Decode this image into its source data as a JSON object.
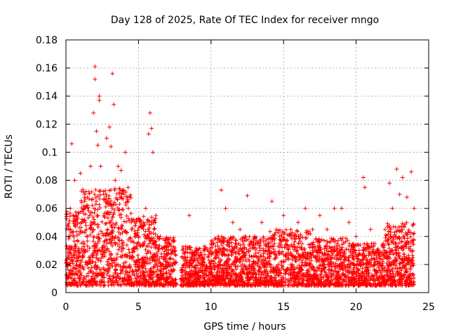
{
  "chart_data": {
    "type": "scatter",
    "title": "Day 128 of 2025, Rate Of TEC Index for receiver mngo",
    "xlabel": "GPS time / hours",
    "ylabel": "ROTI / TECUs",
    "xlim": [
      0,
      25
    ],
    "ylim": [
      0,
      0.18
    ],
    "x_ticks": [
      0,
      5,
      10,
      15,
      20,
      25
    ],
    "x_tick_labels": [
      "0",
      "5",
      "10",
      "15",
      "20",
      "25"
    ],
    "y_ticks": [
      0,
      0.02,
      0.04,
      0.06,
      0.08,
      0.1,
      0.12,
      0.14,
      0.16,
      0.18
    ],
    "y_tick_labels": [
      "0",
      "0.02",
      "0.04",
      "0.06",
      "0.08",
      "0.1",
      "0.12",
      "0.14",
      "0.16",
      "0.18"
    ],
    "grid": true,
    "marker": "+",
    "color": "#ff0000",
    "series": [
      {
        "name": "ROTI",
        "x": [
          0.2,
          0.3,
          0.4,
          0.5,
          0.6,
          0.8,
          1.0,
          1.1,
          1.3,
          1.5,
          1.7,
          1.9,
          2.0,
          2.0,
          2.1,
          2.2,
          2.3,
          2.3,
          2.4,
          2.6,
          2.8,
          3.0,
          3.1,
          3.2,
          3.3,
          3.4,
          3.6,
          3.8,
          4.0,
          4.1,
          4.3,
          4.5,
          4.8,
          5.2,
          5.5,
          5.7,
          5.8,
          5.9,
          6.0,
          6.2,
          6.5,
          7.0,
          7.5,
          8.0,
          8.5,
          9.0,
          9.5,
          10.0,
          10.5,
          10.7,
          11.0,
          11.5,
          12.0,
          12.5,
          13.0,
          13.5,
          14.0,
          14.2,
          14.5,
          15.0,
          15.5,
          16.0,
          16.5,
          17.0,
          17.5,
          18.0,
          18.5,
          19.0,
          19.5,
          20.0,
          20.5,
          20.6,
          21.0,
          21.5,
          22.0,
          22.3,
          22.5,
          22.8,
          23.0,
          23.2,
          23.5,
          23.8,
          24.0
        ],
        "y": [
          0.045,
          0.06,
          0.106,
          0.055,
          0.08,
          0.05,
          0.085,
          0.03,
          0.07,
          0.06,
          0.09,
          0.128,
          0.161,
          0.152,
          0.115,
          0.105,
          0.14,
          0.137,
          0.09,
          0.07,
          0.11,
          0.118,
          0.104,
          0.156,
          0.134,
          0.08,
          0.09,
          0.087,
          0.07,
          0.1,
          0.06,
          0.05,
          0.04,
          0.05,
          0.06,
          0.113,
          0.128,
          0.117,
          0.1,
          0.055,
          0.04,
          0.035,
          0.03,
          0.025,
          0.055,
          0.03,
          0.03,
          0.035,
          0.04,
          0.073,
          0.06,
          0.05,
          0.045,
          0.069,
          0.04,
          0.05,
          0.035,
          0.065,
          0.045,
          0.055,
          0.045,
          0.05,
          0.06,
          0.045,
          0.055,
          0.045,
          0.06,
          0.06,
          0.05,
          0.04,
          0.082,
          0.075,
          0.045,
          0.03,
          0.045,
          0.078,
          0.06,
          0.088,
          0.07,
          0.082,
          0.068,
          0.086,
          0.06
        ]
      }
    ]
  }
}
